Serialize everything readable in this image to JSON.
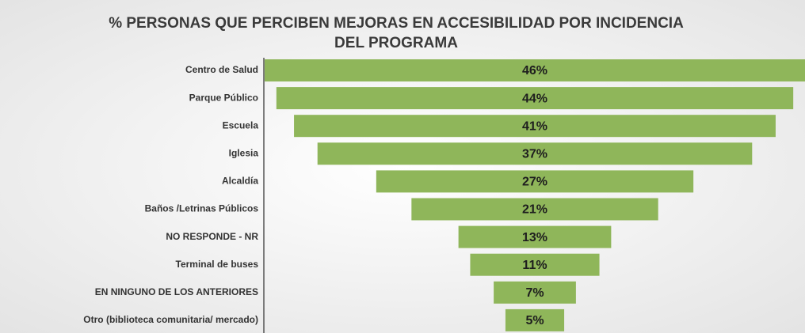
{
  "chart_data": {
    "type": "funnel",
    "title": [
      "% PERSONAS QUE PERCIBEN MEJORAS EN ACCESIBILIDAD POR INCIDENCIA",
      "DEL PROGRAMA"
    ],
    "categories": [
      "Centro de Salud",
      "Parque Público",
      "Escuela",
      "Iglesia",
      "Alcaldía",
      "Baños /Letrinas Públicos",
      "NO RESPONDE - NR",
      "Terminal de buses",
      "EN NINGUNO DE LOS ANTERIORES",
      "Otro (biblioteca comunitaria/ mercado)"
    ],
    "values": [
      46,
      44,
      41,
      37,
      27,
      21,
      13,
      11,
      7,
      5
    ],
    "value_labels": [
      "46%",
      "44%",
      "41%",
      "37%",
      "27%",
      "21%",
      "13%",
      "11%",
      "7%",
      "5%"
    ],
    "color": "#8fb65a"
  }
}
